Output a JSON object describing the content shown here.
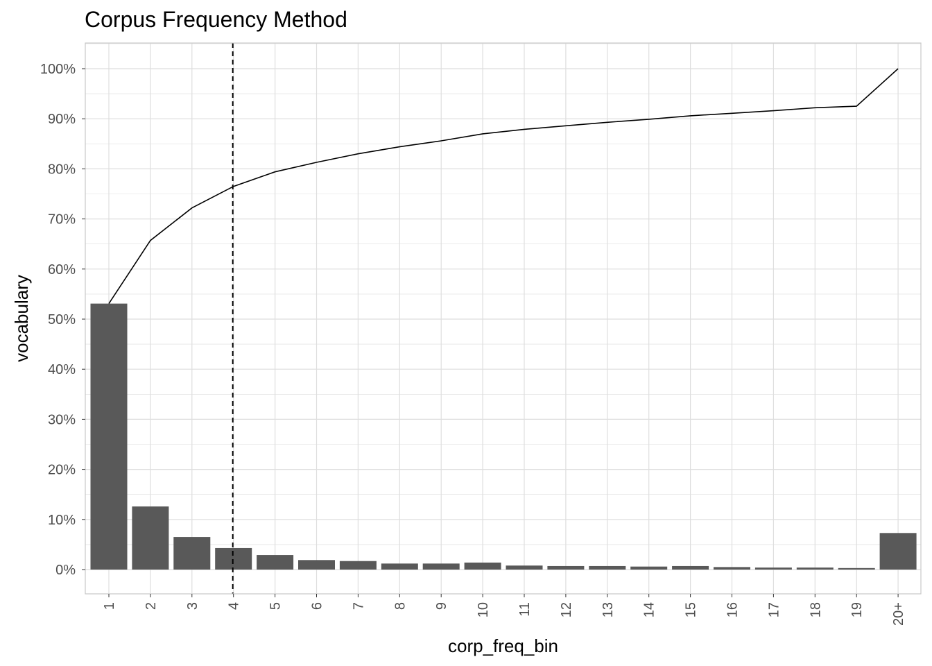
{
  "chart_data": {
    "type": "bar",
    "title": "Corpus Frequency Method",
    "xlabel": "corp_freq_bin",
    "ylabel": "vocabulary",
    "categories": [
      "1",
      "2",
      "3",
      "4",
      "5",
      "6",
      "7",
      "8",
      "9",
      "10",
      "11",
      "12",
      "13",
      "14",
      "15",
      "16",
      "17",
      "18",
      "19",
      "20+"
    ],
    "series": [
      {
        "type": "bar",
        "values": [
          53.1,
          12.6,
          6.5,
          4.3,
          2.9,
          1.9,
          1.7,
          1.2,
          1.2,
          1.4,
          0.8,
          0.7,
          0.7,
          0.6,
          0.7,
          0.5,
          0.4,
          0.4,
          0.3,
          7.3
        ]
      },
      {
        "type": "line",
        "values": [
          53.1,
          65.7,
          72.2,
          76.5,
          79.4,
          81.3,
          83.0,
          84.4,
          85.6,
          87.0,
          87.9,
          88.6,
          89.3,
          89.9,
          90.6,
          91.1,
          91.6,
          92.2,
          92.5,
          100.0
        ]
      }
    ],
    "reference_line": {
      "orientation": "vertical",
      "x": "4",
      "style": "dashed"
    },
    "ylim": [
      -5,
      105
    ],
    "yticks": [
      0,
      10,
      20,
      30,
      40,
      50,
      60,
      70,
      80,
      90,
      100
    ],
    "ytick_labels": [
      "0%",
      "10%",
      "20%",
      "30%",
      "40%",
      "50%",
      "60%",
      "70%",
      "80%",
      "90%",
      "100%"
    ],
    "grid": true,
    "colors": {
      "bar": "#595959",
      "line": "#000000",
      "grid": "#dedede",
      "panel_border": "#c8c8c8"
    }
  }
}
